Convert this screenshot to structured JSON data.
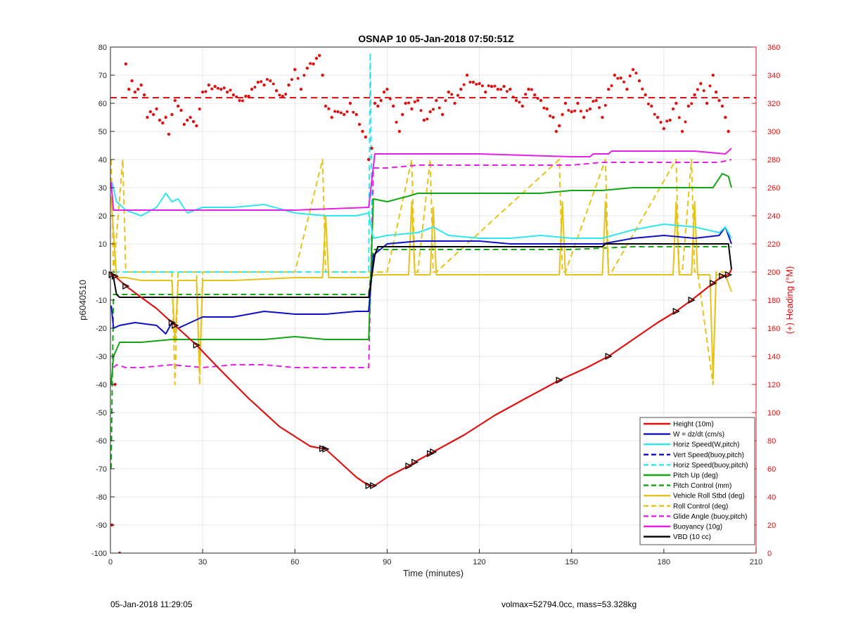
{
  "footer": {
    "left": "05-Jan-2018 11:29:05",
    "right": "volmax=52794.0cc, mass=53.328kg"
  },
  "colors": {
    "red": "#e01010",
    "blue": "#1010c8",
    "cyan": "#2fe6ee",
    "green": "#13a413",
    "yellow": "#e6c21a",
    "magenta": "#e81fe8",
    "black": "#000000"
  },
  "chart_data": {
    "type": "line",
    "title": "OSNAP 10 05-Jan-2018 07:50:51Z",
    "xlabel": "Time (minutes)",
    "ylabel": "p6040510",
    "ylabel_right": "(+) Heading (°M)",
    "xlim": [
      0,
      210
    ],
    "ylim": [
      -100,
      80
    ],
    "ylim_right": [
      0,
      360
    ],
    "xticks": [
      0,
      30,
      60,
      90,
      120,
      150,
      180,
      210
    ],
    "yticks": [
      -100,
      -90,
      -80,
      -70,
      -60,
      -50,
      -40,
      -30,
      -20,
      -10,
      0,
      10,
      20,
      30,
      40,
      50,
      60,
      70,
      80
    ],
    "yticks_right": [
      0,
      20,
      40,
      60,
      80,
      100,
      120,
      140,
      160,
      180,
      200,
      220,
      240,
      260,
      280,
      300,
      320,
      340,
      360
    ],
    "grid": true,
    "legend_position": "bottom-right",
    "series": [
      {
        "name": "Height (10m)",
        "color": "#e01010",
        "style": "solid",
        "x": [
          0,
          1,
          5,
          10,
          15,
          20,
          25,
          28,
          35,
          45,
          55,
          65,
          70,
          75,
          80,
          84,
          86,
          90,
          97,
          100,
          105,
          115,
          125,
          135,
          146,
          155,
          162,
          170,
          178,
          184,
          189,
          196,
          199,
          201,
          202
        ],
        "y": [
          -1,
          -1,
          -5,
          -9,
          -13,
          -18,
          -23,
          -26,
          -34,
          -45,
          -55,
          -62,
          -63,
          -68,
          -73,
          -76,
          -76,
          -73,
          -69,
          -67,
          -64,
          -58,
          -51,
          -45,
          -38.5,
          -34,
          -30,
          -24,
          -18,
          -14,
          -10,
          -4,
          -1.5,
          -1,
          1
        ]
      },
      {
        "name": "W = dz/dt (cm/s)",
        "color": "#1010c8",
        "style": "solid",
        "x": [
          0.3,
          1,
          3,
          8,
          15,
          18,
          20,
          22,
          24,
          30,
          40,
          50,
          60,
          70,
          80,
          84,
          85.5,
          90,
          100,
          110,
          120,
          130,
          140,
          150,
          160,
          170,
          180,
          190,
          198,
          200,
          202
        ],
        "y": [
          -12,
          -20,
          -19,
          -18,
          -19,
          -22,
          -18,
          -20,
          -19,
          -16,
          -16,
          -14,
          -15,
          -15,
          -14,
          -14,
          6,
          10,
          11,
          11,
          11,
          10,
          10,
          10,
          10,
          12,
          13,
          12,
          13,
          16,
          10
        ]
      },
      {
        "name": "Horiz Speed(W,pitch)",
        "color": "#2fe6ee",
        "style": "solid",
        "x": [
          0.5,
          2,
          5,
          10,
          15,
          18,
          20,
          22,
          25,
          30,
          40,
          50,
          60,
          70,
          80,
          84,
          85.5,
          90,
          100,
          105,
          110,
          120,
          130,
          140,
          150,
          160,
          170,
          180,
          190,
          198,
          200,
          202
        ],
        "y": [
          32,
          25,
          22,
          20,
          23,
          28,
          25,
          26,
          21,
          23,
          23,
          24,
          21,
          20,
          20,
          21,
          12,
          13,
          14,
          16,
          13,
          12,
          12,
          13,
          12,
          12,
          15,
          17,
          16,
          14,
          16,
          12
        ]
      },
      {
        "name": "Vert Speed(buoy,pitch)",
        "color": "#1010c8",
        "style": "dashed",
        "x": [
          84,
          85.5
        ],
        "y": [
          -14,
          6
        ]
      },
      {
        "name": "Horiz Speed(buoy,pitch)",
        "color": "#2fe6ee",
        "style": "dashed",
        "x": [
          1,
          10,
          30,
          60,
          80,
          84,
          84.5,
          85
        ],
        "y": [
          0,
          0,
          0,
          0,
          0,
          0,
          78,
          20
        ]
      },
      {
        "name": "Pitch Up (deg)",
        "color": "#13a413",
        "style": "solid",
        "x": [
          0.2,
          1,
          3,
          10,
          20,
          30,
          40,
          50,
          60,
          70,
          80,
          84,
          85.5,
          90,
          97,
          100,
          110,
          120,
          140,
          150,
          160,
          170,
          180,
          190,
          196,
          199,
          201,
          202
        ],
        "y": [
          -40,
          -30,
          -25,
          -25,
          -24,
          -24,
          -24,
          -24,
          -23,
          -24,
          -24,
          -24,
          26,
          25,
          27,
          28,
          28,
          28,
          28,
          29,
          29,
          30,
          30,
          30,
          30,
          35,
          34,
          30
        ]
      },
      {
        "name": "Pitch Control (mm)",
        "color": "#13a413",
        "style": "dashed",
        "x": [
          0.2,
          1,
          3,
          10,
          30,
          60,
          84,
          85.5,
          90,
          100,
          120,
          150,
          170,
          190,
          202
        ],
        "y": [
          -70,
          -8,
          -8,
          -8,
          -8,
          -8,
          -8,
          8,
          8,
          8,
          8,
          8,
          9,
          9,
          9
        ]
      },
      {
        "name": "Vehicle Roll Stbd (deg)",
        "color": "#e6c21a",
        "style": "solid",
        "x": [
          0.2,
          2,
          4,
          5,
          10,
          20,
          21,
          22,
          28,
          29,
          30,
          40,
          60,
          69,
          70,
          71,
          80,
          84,
          86,
          90,
          97,
          98,
          99,
          100,
          104,
          105,
          106,
          110,
          130,
          146,
          147,
          148,
          160,
          161,
          162,
          170,
          183,
          184,
          185,
          189,
          190,
          191,
          195,
          196,
          197,
          200,
          202
        ],
        "y": [
          27,
          -2,
          -2,
          -2,
          -3,
          -3,
          -25,
          -3,
          -3,
          -35,
          -3,
          -3,
          -2,
          -2,
          20,
          -2,
          -2,
          -2,
          -1,
          -1,
          -1,
          25,
          -1,
          -1,
          -1,
          23,
          -1,
          -1,
          -1,
          -1,
          25,
          -1,
          -1,
          25,
          -1,
          -1,
          -1,
          25,
          -1,
          -1,
          25,
          -1,
          -1,
          -38,
          -1,
          -1,
          -7
        ]
      },
      {
        "name": "Roll Control (deg)",
        "color": "#e6c21a",
        "style": "dashed",
        "x": [
          0.2,
          1,
          4,
          5,
          10,
          20,
          21,
          22,
          28,
          29,
          30,
          60,
          69,
          70,
          71,
          84,
          90,
          98,
          99,
          100,
          104,
          105,
          106,
          146,
          147,
          148,
          161,
          162,
          163,
          184,
          185,
          186,
          189,
          190,
          191,
          196,
          197,
          198,
          202
        ],
        "y": [
          40,
          0,
          40,
          0,
          0,
          0,
          -40,
          0,
          0,
          -40,
          0,
          0,
          40,
          0,
          0,
          0,
          0,
          40,
          0,
          0,
          40,
          0,
          0,
          40,
          0,
          0,
          40,
          0,
          0,
          40,
          0,
          0,
          40,
          0,
          0,
          -40,
          0,
          0,
          0
        ]
      },
      {
        "name": "Glide Angle (buoy,pitch)",
        "color": "#e81fe8",
        "style": "dashed",
        "x": [
          1,
          2,
          5,
          10,
          20,
          30,
          40,
          50,
          60,
          70,
          80,
          84,
          85.5,
          90,
          100,
          120,
          140,
          150,
          160,
          170,
          180,
          190,
          198,
          202
        ],
        "y": [
          -34,
          -33,
          -34,
          -34,
          -33,
          -34,
          -33,
          -33,
          -34,
          -34,
          -34,
          -34,
          37,
          37,
          38,
          38,
          38,
          38,
          39,
          39,
          39,
          39,
          39,
          40
        ]
      },
      {
        "name": "Buoyancy (10g)",
        "color": "#e81fe8",
        "style": "solid",
        "x": [
          0.2,
          1,
          3,
          30,
          60,
          84,
          86,
          90,
          100,
          120,
          150,
          156,
          157,
          162,
          163,
          190,
          200,
          201,
          202
        ],
        "y": [
          32,
          22,
          22,
          22,
          22,
          23,
          42,
          42,
          42,
          42,
          41,
          41,
          42,
          42,
          43,
          43,
          42,
          43,
          44
        ]
      },
      {
        "name": "VBD (10 cc)",
        "color": "#000000",
        "style": "solid",
        "x": [
          0.2,
          1,
          2,
          3,
          30,
          60,
          84,
          86,
          87,
          90,
          120,
          150,
          160,
          161,
          190,
          200,
          201,
          202
        ],
        "y": [
          0,
          -2,
          -8,
          -9,
          -9,
          -9,
          -9,
          6,
          9,
          9,
          9,
          9,
          9,
          10,
          10,
          10,
          10,
          1
        ]
      }
    ],
    "heading_series": {
      "name": "Heading (°M)",
      "color": "#e01010",
      "axis": "right",
      "reference": 324,
      "x": [
        0.5,
        1.5,
        3,
        5,
        6,
        7,
        8,
        9,
        10,
        11,
        12,
        13,
        14,
        15,
        16,
        17,
        18,
        19,
        20,
        21,
        22,
        23,
        24,
        25,
        26,
        27,
        28,
        30,
        32,
        34,
        36,
        38,
        40,
        42,
        44,
        46,
        48,
        50,
        52,
        54,
        56,
        58,
        60,
        62,
        64,
        66,
        67,
        68,
        69,
        70,
        72,
        74,
        76,
        78,
        80,
        81,
        82,
        83,
        84,
        85,
        86,
        87,
        88,
        89,
        90,
        92,
        94,
        95,
        96,
        98,
        100,
        102,
        104,
        106,
        108,
        110,
        112,
        114,
        116,
        118,
        120,
        122,
        124,
        126,
        128,
        130,
        132,
        134,
        136,
        138,
        140,
        142,
        144,
        145,
        146,
        147,
        148,
        150,
        152,
        154,
        156,
        158,
        160,
        162,
        164,
        166,
        168,
        170,
        172,
        174,
        176,
        178,
        180,
        182,
        184,
        186,
        188,
        190,
        192,
        194,
        196,
        197,
        198,
        199,
        200,
        201
      ],
      "y": [
        20,
        120,
        0,
        348,
        330,
        336,
        328,
        330,
        333,
        326,
        310,
        314,
        312,
        316,
        308,
        306,
        310,
        298,
        312,
        322,
        318,
        315,
        305,
        308,
        310,
        307,
        304,
        328,
        333,
        332,
        330,
        328,
        326,
        322,
        325,
        330,
        335,
        333,
        336,
        329,
        325,
        333,
        344,
        330,
        345,
        348,
        352,
        354,
        340,
        318,
        310,
        314,
        312,
        320,
        312,
        305,
        300,
        296,
        280,
        288,
        320,
        318,
        322,
        328,
        330,
        318,
        300,
        312,
        320,
        316,
        322,
        308,
        314,
        322,
        312,
        328,
        320,
        330,
        340,
        335,
        334,
        328,
        332,
        330,
        332,
        330,
        322,
        318,
        330,
        326,
        322,
        316,
        310,
        300,
        304,
        312,
        320,
        314,
        320,
        310,
        316,
        322,
        310,
        330,
        340,
        338,
        330,
        344,
        336,
        326,
        318,
        310,
        302,
        308,
        320,
        300,
        318,
        326,
        334,
        320,
        340,
        328,
        322,
        318,
        310,
        300
      ]
    }
  }
}
